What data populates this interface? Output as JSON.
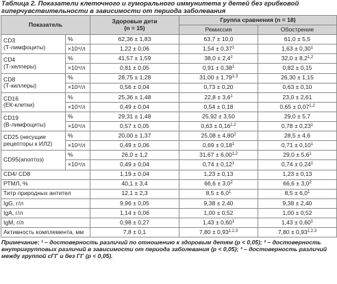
{
  "caption": "Таблица 2. Показатели клеточного и гуморального иммунитета у детей без грибковой гиперчувствительности в зависимости от периода заболевания",
  "header": {
    "indicator": "Показатель",
    "healthy": "Здоровые дети",
    "healthy_n": "(n = 15)",
    "group": "Группа сравнения (n = 18)",
    "remission": "Ремиссия",
    "exacerbation": "Обострение"
  },
  "groups": [
    {
      "label": [
        "CD3",
        "(Т-лимфоциты)"
      ],
      "rows": [
        {
          "unit": "%",
          "cells": [
            "62,36 ± 1,83",
            "63,7 ± 10,0",
            "61,0 ± 5,5"
          ]
        },
        {
          "unit": "×10⁹/л",
          "cells": [
            "1,22 ± 0,06",
            {
              "text": "1,54 ± 0,37",
              "sup": "1"
            },
            {
              "text": "1,63 ± 0,30",
              "sup": "1"
            }
          ]
        }
      ]
    },
    {
      "label": [
        "CD4",
        "(Т-хелперы)"
      ],
      "rows": [
        {
          "unit": "%",
          "cells": [
            "41,57 ± 1,59",
            {
              "text": "38,0 ± 2,4",
              "sup": "1"
            },
            {
              "text": "32,0 ± 8,2",
              "sup": "1,2"
            }
          ]
        },
        {
          "unit": "×10⁹/л",
          "cells": [
            "0,81 ± 0,05",
            {
              "text": "0,91 ± 0,38",
              "sup": "1"
            },
            "0,82 ± 0,15"
          ]
        }
      ]
    },
    {
      "label": [
        "CD8",
        "(Т-киллеры)"
      ],
      "rows": [
        {
          "unit": "%",
          "cells": [
            "28,75 ± 1,28",
            {
              "text": "31,00 ± 1,79",
              "sup": "1,3"
            },
            "26,30 ± 1,15"
          ]
        },
        {
          "unit": "×10⁹/л",
          "cells": [
            "0,56 ± 0,04",
            "0,73 ± 0,20",
            "0,63 ± 0,10"
          ]
        }
      ]
    },
    {
      "label": [
        "CD16",
        "(ЕК-клетки)"
      ],
      "rows": [
        {
          "unit": "%",
          "cells": [
            "25,36 ± 1,48",
            {
              "text": "22,8 ± 3,6",
              "sup": "1"
            },
            "23,0 ± 2,61"
          ]
        },
        {
          "unit": "×10⁹/л",
          "cells": [
            "0,49 ± 0,04",
            "0,54 ± 0,18",
            {
              "text": "0,65 ± 0,07",
              "sup": "1,2"
            }
          ]
        }
      ]
    },
    {
      "label": [
        "CD19",
        "(В-лимфоциты)"
      ],
      "rows": [
        {
          "unit": "%",
          "cells": [
            "29,31 ± 1,48",
            "25,92 ± 3,50",
            "29,0 ± 5,7"
          ]
        },
        {
          "unit": "×10⁹/л",
          "cells": [
            "0,57 ± 0,05",
            {
              "text": "0,63 ± 0,16",
              "sup": "1,2"
            },
            {
              "text": "0,78 ± 0,23",
              "sup": "1"
            }
          ]
        }
      ]
    },
    {
      "label": [
        "CD25 (несущие",
        "рецепторы к ИЛ2)"
      ],
      "rows": [
        {
          "unit": "%",
          "cells": [
            "20,00 ± 1,37",
            {
              "text": "25,08 ± 4,80",
              "sup": "2"
            },
            "28,5 ± 4,6"
          ]
        },
        {
          "unit": "×10⁹/л",
          "cells": [
            "0,49 ± 0,06",
            {
              "text": "0,69 ± 0,18",
              "sup": "1"
            },
            {
              "text": "0,71 ± 0,10",
              "sup": "1"
            }
          ]
        }
      ]
    },
    {
      "label": [
        "CD95(апоптоз)"
      ],
      "rows": [
        {
          "unit": "%",
          "cells": [
            "26,0 ± 1,2",
            {
              "text": "31,67 ± 6,00",
              "sup": "1,2"
            },
            {
              "text": "29,0 ± 5,6",
              "sup": "1"
            }
          ]
        },
        {
          "unit": "×10⁹/л",
          "cells": [
            "0,49 ± 0,04",
            {
              "text": "0,74 ± 0,12",
              "sup": "1"
            },
            {
              "text": "0,74 ± 0,24",
              "sup": "1"
            }
          ]
        }
      ]
    }
  ],
  "singles": [
    {
      "label": "CD4/ CD8",
      "cells": [
        "1,19 ± 0,04",
        "1,23 ± 0,13",
        "1,23 ± 0,13"
      ]
    },
    {
      "label": "РТМЛ, %",
      "cells": [
        "40,1 ± 3,4",
        {
          "text": "66,6 ± 3,0",
          "sup": "2"
        },
        {
          "text": "66,6 ± 3,0",
          "sup": "2"
        }
      ]
    },
    {
      "label": "Титр природных антител",
      "cells": [
        "12,1 ± 2,3",
        {
          "text": "8,5 ± 6,0",
          "sup": "1"
        },
        {
          "text": "8,5 ± 6,0",
          "sup": "1"
        }
      ]
    },
    {
      "label": "IgG, г/л",
      "cells": [
        "9,96 ± 0,05",
        "9,38 ± 2,40",
        "9,38 ± 2,40"
      ]
    },
    {
      "label": "IgA, г/л",
      "cells": [
        "1,14 ± 0,06",
        "1,00 ± 0,52",
        "1,00 ± 0,52"
      ]
    },
    {
      "label": "IgM, г/л",
      "cells": [
        "0,98 ± 0,27",
        {
          "text": "1,43 ± 0,60",
          "sup": "1"
        },
        {
          "text": "1,43 ± 0,60",
          "sup": "1"
        }
      ]
    },
    {
      "label": "Активность комплемента, мм",
      "cells": [
        "7,8 ± 0,1",
        {
          "text": "7,80 ± 0,93",
          "sup": "1,2,3"
        },
        {
          "text": "7,80 ± 0,93",
          "sup": "1,2,3"
        }
      ]
    }
  ],
  "note": {
    "label": "Примечание:",
    "text": "¹ – достоверность различий по отношению к здоровым детям (p < 0,05); ² – достоверность внутригрупповых различий в зависимости от периода заболевания (p < 0,05); ³ – достоверность различий между группой сГГ и без ГГ (p < 0,05)."
  }
}
